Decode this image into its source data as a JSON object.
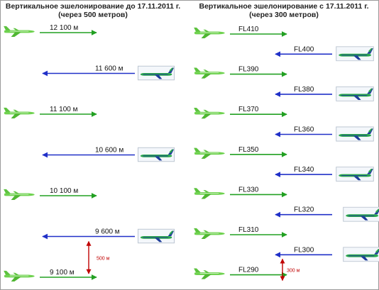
{
  "left": {
    "title": "Вертикальное эшелонирование до 17.11.2011 г.",
    "subtitle": "(через 500 метров)",
    "levels": [
      {
        "label": "12 100 м",
        "direction": "east"
      },
      {
        "label": "11 600 м",
        "direction": "west"
      },
      {
        "label": "11 100 м",
        "direction": "east"
      },
      {
        "label": "10 600 м",
        "direction": "west"
      },
      {
        "label": "10 100 м",
        "direction": "east"
      },
      {
        "label": "9 600 м",
        "direction": "west"
      },
      {
        "label": "9 100 м",
        "direction": "east"
      }
    ],
    "separation": "500 м"
  },
  "right": {
    "title": "Вертикальное эшелонирование с  17.11.2011 г.",
    "subtitle": "(через 300 метров)",
    "levels": [
      {
        "label": "FL410",
        "direction": "east"
      },
      {
        "label": "FL400",
        "direction": "west"
      },
      {
        "label": "FL390",
        "direction": "east"
      },
      {
        "label": "FL380",
        "direction": "west"
      },
      {
        "label": "FL370",
        "direction": "east"
      },
      {
        "label": "FL360",
        "direction": "west"
      },
      {
        "label": "FL350",
        "direction": "east"
      },
      {
        "label": "FL340",
        "direction": "west"
      },
      {
        "label": "FL330",
        "direction": "east"
      },
      {
        "label": "FL320",
        "direction": "west"
      },
      {
        "label": "FL310",
        "direction": "east"
      },
      {
        "label": "FL300",
        "direction": "west"
      },
      {
        "label": "FL290",
        "direction": "east"
      }
    ],
    "separation": "300 м"
  },
  "colors": {
    "east_arrow": "#22a022",
    "west_arrow": "#2030c8",
    "separation_arrow": "#c00000",
    "plane_east": "#6fd24f",
    "plane_west_body": "#2aa84a",
    "plane_west_stripe": "#1e3c9a"
  }
}
